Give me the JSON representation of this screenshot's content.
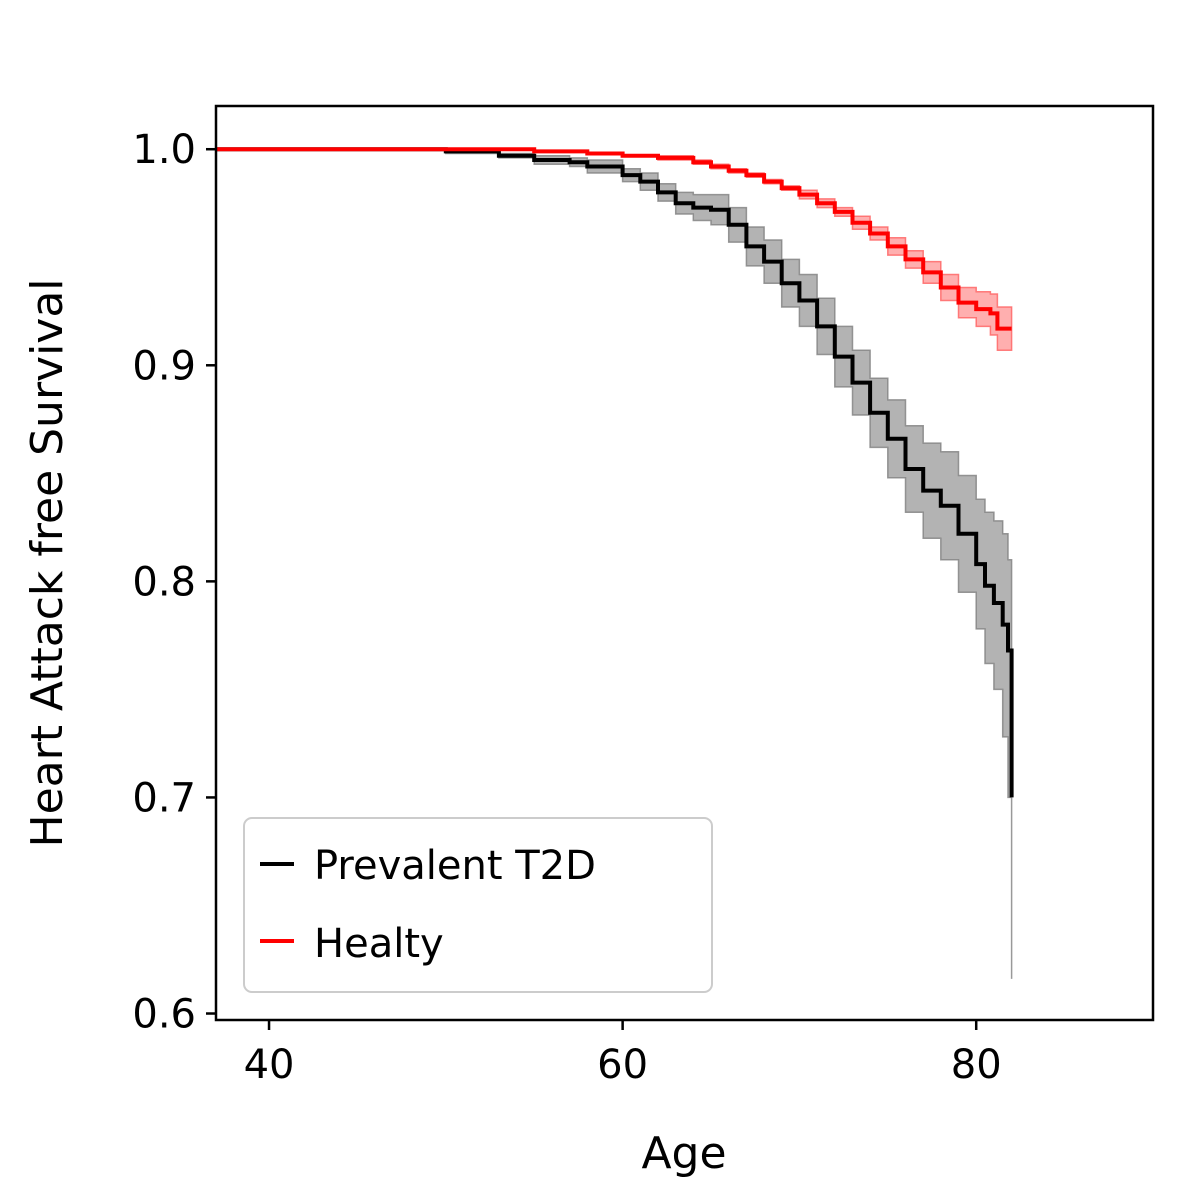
{
  "chart_data": {
    "type": "line",
    "title": "",
    "xlabel": "Age",
    "ylabel": "Heart Attack free Survival",
    "xlim": [
      37,
      90
    ],
    "ylim": [
      0.597,
      1.02
    ],
    "xticks": [
      40,
      60,
      80
    ],
    "yticks": [
      0.6,
      0.7,
      0.8,
      0.9,
      1.0
    ],
    "xtick_labels": [
      "40",
      "60",
      "80"
    ],
    "ytick_labels": [
      "0.6",
      "0.7",
      "0.8",
      "0.9",
      "1.0"
    ],
    "grid": false,
    "legend_position": "lower-left",
    "series": [
      {
        "name": "Prevalent T2D",
        "color": "#000000",
        "band_color": "#808080",
        "x": [
          37,
          47,
          50,
          53,
          55,
          57,
          58,
          60,
          61,
          62,
          63,
          64,
          65,
          66,
          67,
          68,
          69,
          70,
          71,
          72,
          73,
          74,
          75,
          76,
          77,
          78,
          79,
          80,
          80.5,
          81,
          81.5,
          81.8,
          82
        ],
        "y": [
          1.0,
          1.0,
          0.999,
          0.997,
          0.995,
          0.994,
          0.992,
          0.988,
          0.985,
          0.98,
          0.975,
          0.973,
          0.972,
          0.965,
          0.955,
          0.948,
          0.938,
          0.93,
          0.918,
          0.904,
          0.892,
          0.878,
          0.866,
          0.852,
          0.842,
          0.835,
          0.822,
          0.808,
          0.798,
          0.79,
          0.78,
          0.768,
          0.7
        ],
        "lower": [
          1.0,
          1.0,
          0.998,
          0.996,
          0.993,
          0.992,
          0.989,
          0.985,
          0.981,
          0.976,
          0.97,
          0.967,
          0.965,
          0.957,
          0.946,
          0.938,
          0.927,
          0.918,
          0.905,
          0.89,
          0.877,
          0.862,
          0.848,
          0.832,
          0.82,
          0.81,
          0.795,
          0.778,
          0.762,
          0.75,
          0.728,
          0.7,
          0.616
        ],
        "upper": [
          1.0,
          1.0,
          1.0,
          0.998,
          0.997,
          0.996,
          0.995,
          0.991,
          0.989,
          0.984,
          0.98,
          0.979,
          0.979,
          0.973,
          0.964,
          0.958,
          0.949,
          0.942,
          0.931,
          0.918,
          0.907,
          0.894,
          0.884,
          0.872,
          0.864,
          0.86,
          0.849,
          0.838,
          0.832,
          0.828,
          0.822,
          0.81,
          0.778
        ]
      },
      {
        "name": "Healty",
        "color": "#ff0000",
        "band_color": "#ff6060",
        "x": [
          37,
          47,
          50,
          55,
          58,
          60,
          62,
          64,
          65,
          66,
          67,
          68,
          69,
          70,
          71,
          72,
          73,
          74,
          75,
          76,
          77,
          78,
          79,
          80,
          80.8,
          81.2,
          82
        ],
        "y": [
          1.0,
          1.0,
          1.0,
          0.999,
          0.998,
          0.997,
          0.996,
          0.994,
          0.992,
          0.99,
          0.988,
          0.985,
          0.982,
          0.979,
          0.975,
          0.971,
          0.966,
          0.961,
          0.955,
          0.949,
          0.943,
          0.936,
          0.929,
          0.926,
          0.924,
          0.917,
          0.917
        ],
        "lower": [
          1.0,
          1.0,
          1.0,
          0.999,
          0.998,
          0.997,
          0.995,
          0.993,
          0.991,
          0.989,
          0.987,
          0.984,
          0.981,
          0.977,
          0.973,
          0.969,
          0.963,
          0.958,
          0.951,
          0.945,
          0.938,
          0.93,
          0.922,
          0.918,
          0.914,
          0.907,
          0.907
        ],
        "upper": [
          1.0,
          1.0,
          1.0,
          0.999,
          0.998,
          0.997,
          0.997,
          0.995,
          0.993,
          0.991,
          0.989,
          0.986,
          0.983,
          0.981,
          0.977,
          0.973,
          0.969,
          0.964,
          0.959,
          0.953,
          0.948,
          0.942,
          0.936,
          0.934,
          0.933,
          0.927,
          0.927
        ]
      }
    ]
  }
}
